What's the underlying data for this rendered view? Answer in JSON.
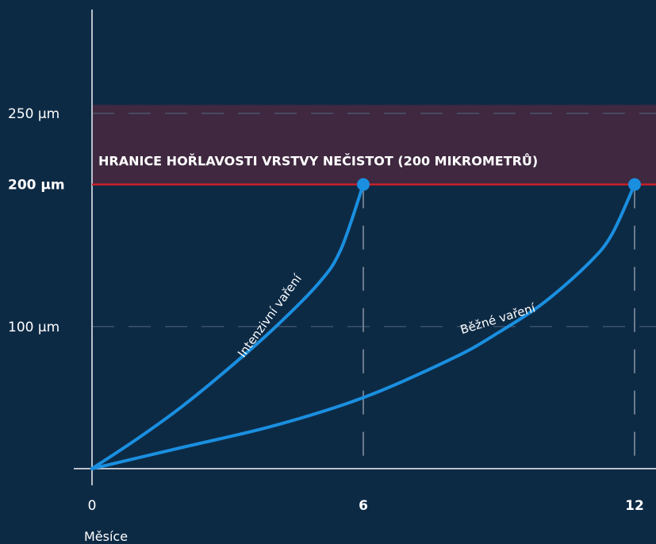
{
  "chart_data": {
    "type": "line",
    "xlabel": "Měsíce",
    "ylabel": "",
    "xlim": [
      0,
      12.5
    ],
    "ylim": [
      0,
      260
    ],
    "x_ticks": [
      {
        "value": 0,
        "label": "0",
        "bold": false
      },
      {
        "value": 6,
        "label": "6",
        "bold": true
      },
      {
        "value": 12,
        "label": "12",
        "bold": true
      }
    ],
    "y_ticks": [
      {
        "value": 100,
        "label": "100 µm",
        "bold": false,
        "dashed_grid": true
      },
      {
        "value": 200,
        "label": "200 µm",
        "bold": true,
        "dashed_grid": false
      },
      {
        "value": 250,
        "label": "250 µm",
        "bold": false,
        "dashed_grid": true
      }
    ],
    "threshold": {
      "value": 200,
      "label": "HRANICE HOŘLAVOSTI VRSTVY NEČISTOT (200 MIKROMETRŮ)",
      "zone_above": [
        200,
        256
      ],
      "zone_color": "#3f2840",
      "line_color": "#c8202a"
    },
    "series": [
      {
        "name": "Intenzivní vaření",
        "color": "#1a8fe0",
        "x": [
          0,
          1,
          2,
          3,
          4,
          5,
          5.5,
          6
        ],
        "y": [
          0,
          21,
          44,
          70,
          98,
          130,
          154,
          200
        ]
      },
      {
        "name": "Běžné vaření",
        "color": "#1a8fe0",
        "x": [
          0,
          2,
          4,
          6,
          8,
          9,
          10,
          11,
          11.5,
          12
        ],
        "y": [
          0,
          15,
          30,
          50,
          78,
          96,
          117,
          145,
          165,
          200
        ]
      }
    ],
    "grid": "dashed vertical lines at x=6 and x=12; dashed horizontal lines at 100 and 250",
    "legend": "none"
  }
}
